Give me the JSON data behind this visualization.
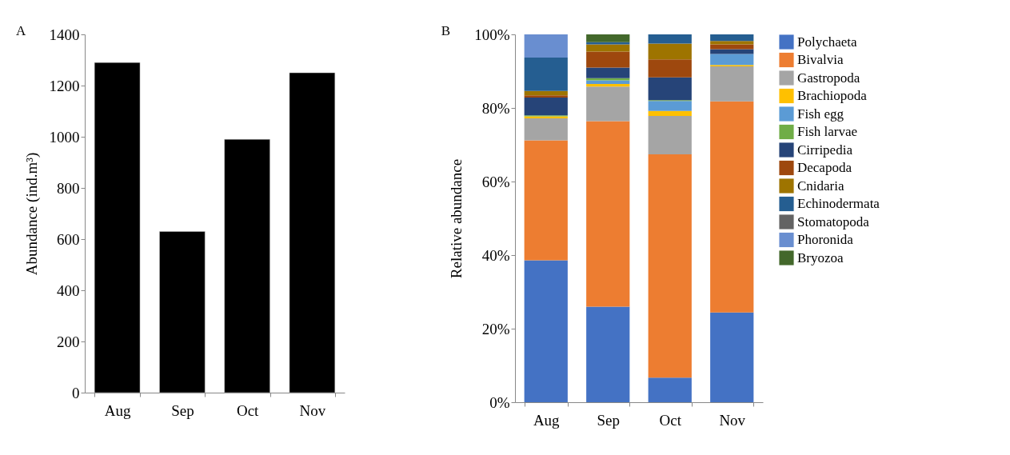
{
  "chart_data": [
    {
      "type": "bar",
      "annotations": [
        "A"
      ],
      "ylabel": "Abundance (ind.m³)",
      "categories": [
        "Aug",
        "Sep",
        "Oct",
        "Nov"
      ],
      "values": [
        1290,
        630,
        990,
        1250
      ],
      "color": "#000000",
      "ylim": [
        0,
        1400
      ],
      "yticks": [
        0,
        200,
        400,
        600,
        800,
        1000,
        1200,
        1400
      ],
      "grid": false
    },
    {
      "type": "bar",
      "annotations": [
        "B"
      ],
      "ylabel": "Relative abundance",
      "categories": [
        "Aug",
        "Sep",
        "Oct",
        "Nov"
      ],
      "stacked": true,
      "legend": "top right",
      "grid": false,
      "ylim": [
        0,
        100
      ],
      "yticks": [
        {
          "value": 0,
          "label": "0%"
        },
        {
          "value": 20,
          "label": "20%"
        },
        {
          "value": 40,
          "label": "40%"
        },
        {
          "value": 60,
          "label": "60%"
        },
        {
          "value": 80,
          "label": "80%"
        },
        {
          "value": 100,
          "label": "100%"
        }
      ],
      "series": [
        {
          "name": "Polychaeta",
          "color": "#4472c4",
          "values": [
            38.6,
            26.0,
            6.7,
            24.4
          ]
        },
        {
          "name": "Bivalvia",
          "color": "#ed7d31",
          "values": [
            32.6,
            50.4,
            60.7,
            57.4
          ]
        },
        {
          "name": "Gastropoda",
          "color": "#a5a5a5",
          "values": [
            6.0,
            9.4,
            10.4,
            9.5
          ]
        },
        {
          "name": "Brachiopoda",
          "color": "#ffc000",
          "values": [
            0.5,
            0.7,
            1.4,
            0.4
          ]
        },
        {
          "name": "Fish egg",
          "color": "#5b9bd5",
          "values": [
            0,
            1.0,
            2.7,
            3.0
          ]
        },
        {
          "name": "Fish larvae",
          "color": "#70ad47",
          "values": [
            0.3,
            0.6,
            0.2,
            0
          ]
        },
        {
          "name": "Cirripedia",
          "color": "#264478",
          "values": [
            4.8,
            2.9,
            6.2,
            1.3
          ]
        },
        {
          "name": "Decapoda",
          "color": "#9e480e",
          "values": [
            0.6,
            4.3,
            4.9,
            1.3
          ]
        },
        {
          "name": "Cnidaria",
          "color": "#9e7400",
          "values": [
            1.2,
            2.0,
            4.3,
            0.9
          ]
        },
        {
          "name": "Echinodermata",
          "color": "#255e91",
          "values": [
            9.1,
            0.6,
            2.5,
            1.8
          ]
        },
        {
          "name": "Stomatopoda",
          "color": "#636363",
          "values": [
            0,
            0,
            0,
            0
          ]
        },
        {
          "name": "Phoronida",
          "color": "#698ed0",
          "values": [
            6.3,
            0,
            0,
            0
          ]
        },
        {
          "name": "Bryozoa",
          "color": "#43682b",
          "values": [
            0,
            2.1,
            0,
            0
          ]
        }
      ]
    }
  ]
}
